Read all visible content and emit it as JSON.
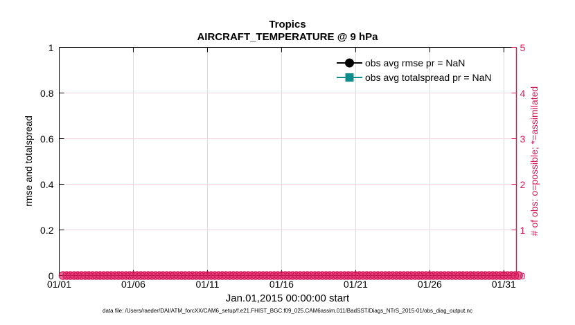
{
  "chart_data": {
    "type": "line",
    "title": "Tropics",
    "subtitle": "AIRCRAFT_TEMPERATURE @ 9 hPa",
    "xlabel": "Jan.01,2015 00:00:00 start",
    "ylabel_left": "rmse and totalspread",
    "ylabel_right": "# of obs: o=possible; *=assimilated",
    "x_tick_labels": [
      "01/01",
      "01/06",
      "01/11",
      "01/16",
      "01/21",
      "01/26",
      "01/31"
    ],
    "x_tick_days": [
      0,
      5,
      10,
      15,
      20,
      25,
      30
    ],
    "x_range_days": [
      0,
      30.85
    ],
    "ylim_left": [
      0,
      1
    ],
    "y_ticks_left": [
      "0",
      "0.2",
      "0.4",
      "0.6",
      "0.8",
      "1"
    ],
    "ylim_right": [
      0,
      5
    ],
    "y_ticks_right": [
      "0",
      "1",
      "2",
      "3",
      "4",
      "5"
    ],
    "grid": true,
    "legend_position": "upper-right-inside",
    "series": [
      {
        "name": "obs avg rmse pr = NaN",
        "color": "#000000",
        "marker": "filled-circle",
        "axis": "left",
        "values": "NaN"
      },
      {
        "name": "obs avg totalspread pr = NaN",
        "color": "#0d8c8c",
        "marker": "filled-square",
        "axis": "left",
        "values": "NaN"
      },
      {
        "name": "obs possible count",
        "color": "#d81b5e",
        "marker": "open-circle",
        "axis": "right",
        "y_value": 0,
        "x_days_start": 0.25,
        "x_days_end": 31,
        "x_step_days": 0.25
      }
    ],
    "colors": {
      "right_axis": "#d81b5e",
      "marker_fill": "rgba(216,27,94,0.6)",
      "grid_horizontal": "#f6d7e4",
      "grid_vertical": "#d9d9d9",
      "axis": "#000000",
      "teal": "#0d8c8c"
    },
    "footnote": "data file: /Users/raeder/DAI/ATM_forcXX/CAM6_setup/f.e21.FHIST_BGC.f09_025.CAM6assim.011/BadSST/Diags_NTrS_2015-01/obs_diag_output.nc"
  }
}
